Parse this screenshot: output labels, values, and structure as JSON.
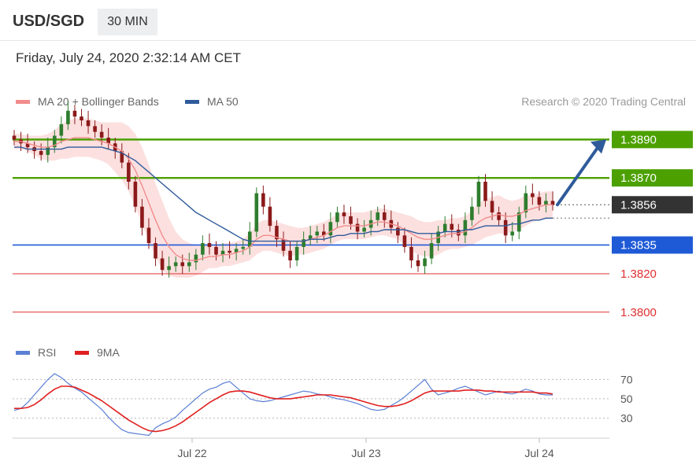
{
  "header": {
    "pair": "USD/SGD",
    "timeframe": "30 MIN"
  },
  "timestamp": "Friday, July 24, 2020 2:32:14 AM CET",
  "legend": {
    "items": [
      {
        "label": "MA 20 + Bollinger Bands",
        "color": "#f28c8c"
      },
      {
        "label": "MA 50",
        "color": "#2f5b9b"
      }
    ],
    "credit": "Research © 2020 Trading Central"
  },
  "rsi_legend": {
    "items": [
      {
        "label": "RSI",
        "color": "#5b7fd4"
      },
      {
        "label": "9MA",
        "color": "#e02020"
      }
    ]
  },
  "chart_data": [
    {
      "type": "line",
      "title": "USD/SGD",
      "x_ticks": [
        "Jul 22",
        "Jul 23",
        "Jul 24"
      ],
      "ylim": [
        1.3795,
        1.39
      ],
      "current_price": {
        "label": "1.3856",
        "value": 1.3856,
        "color": "#333333"
      },
      "levels": [
        {
          "label": "1.3890",
          "value": 1.389,
          "color": "#4ca000",
          "kind": "resistance",
          "tag": "box"
        },
        {
          "label": "1.3870",
          "value": 1.387,
          "color": "#4ca000",
          "kind": "resistance",
          "tag": "box"
        },
        {
          "label": "1.3835",
          "value": 1.3835,
          "color": "#1f5ad6",
          "kind": "pivot",
          "tag": "box"
        },
        {
          "label": "1.3820",
          "value": 1.382,
          "color": "#e03030",
          "kind": "support",
          "tag": "text"
        },
        {
          "label": "1.3800",
          "value": 1.38,
          "color": "#e03030",
          "kind": "support",
          "tag": "text"
        }
      ],
      "forecast_arrow": {
        "from": 1.3856,
        "to": 1.389,
        "color": "#2f5b9b"
      },
      "close_series": [
        1.389,
        1.3888,
        1.3886,
        1.3884,
        1.3882,
        1.3886,
        1.3892,
        1.3898,
        1.3905,
        1.3902,
        1.39,
        1.3897,
        1.3894,
        1.3891,
        1.3888,
        1.3884,
        1.3878,
        1.3868,
        1.3855,
        1.3844,
        1.3836,
        1.3828,
        1.3822,
        1.3824,
        1.3826,
        1.3824,
        1.3826,
        1.383,
        1.3836,
        1.3834,
        1.383,
        1.3832,
        1.3831,
        1.3833,
        1.3834,
        1.3842,
        1.3862,
        1.3855,
        1.3845,
        1.3838,
        1.3832,
        1.3827,
        1.3834,
        1.3838,
        1.384,
        1.3842,
        1.384,
        1.3847,
        1.3852,
        1.385,
        1.3846,
        1.3842,
        1.3844,
        1.3848,
        1.3852,
        1.3848,
        1.3844,
        1.384,
        1.3834,
        1.3827,
        1.3824,
        1.3828,
        1.3836,
        1.3842,
        1.3846,
        1.3843,
        1.384,
        1.3848,
        1.3855,
        1.3868,
        1.3858,
        1.3852,
        1.3848,
        1.384,
        1.3842,
        1.3852,
        1.3862,
        1.386,
        1.3856,
        1.3858,
        1.3856
      ],
      "ma20": [
        1.3889,
        1.3889,
        1.3888,
        1.3887,
        1.3886,
        1.3886,
        1.3887,
        1.3889,
        1.389,
        1.3891,
        1.3891,
        1.3891,
        1.389,
        1.3889,
        1.3888,
        1.3886,
        1.3884,
        1.388,
        1.3874,
        1.3866,
        1.3857,
        1.3848,
        1.384,
        1.3834,
        1.383,
        1.3828,
        1.3827,
        1.3827,
        1.3828,
        1.3829,
        1.3829,
        1.383,
        1.383,
        1.3831,
        1.3832,
        1.3834,
        1.3838,
        1.384,
        1.384,
        1.3839,
        1.3838,
        1.3837,
        1.3837,
        1.3837,
        1.3838,
        1.3839,
        1.384,
        1.3842,
        1.3844,
        1.3845,
        1.3845,
        1.3845,
        1.3845,
        1.3846,
        1.3847,
        1.3847,
        1.3846,
        1.3845,
        1.3843,
        1.3841,
        1.3839,
        1.3838,
        1.3838,
        1.3839,
        1.384,
        1.3841,
        1.3841,
        1.3842,
        1.3844,
        1.3847,
        1.3849,
        1.385,
        1.3851,
        1.385,
        1.385,
        1.3851,
        1.3853,
        1.3854,
        1.3855,
        1.3856,
        1.3856
      ],
      "ma50": [
        1.3886,
        1.3886,
        1.3885,
        1.3885,
        1.3885,
        1.3885,
        1.3885,
        1.3885,
        1.3886,
        1.3886,
        1.3886,
        1.3886,
        1.3886,
        1.3886,
        1.3885,
        1.3884,
        1.3883,
        1.3881,
        1.3879,
        1.3876,
        1.3873,
        1.387,
        1.3867,
        1.3864,
        1.3861,
        1.3858,
        1.3855,
        1.3852,
        1.385,
        1.3848,
        1.3846,
        1.3844,
        1.3842,
        1.384,
        1.3838,
        1.3837,
        1.3837,
        1.3837,
        1.3837,
        1.3837,
        1.3837,
        1.3837,
        1.3837,
        1.3837,
        1.3838,
        1.3838,
        1.3838,
        1.3839,
        1.384,
        1.384,
        1.3841,
        1.3841,
        1.3841,
        1.3842,
        1.3842,
        1.3843,
        1.3843,
        1.3843,
        1.3843,
        1.3842,
        1.3841,
        1.3841,
        1.3841,
        1.3841,
        1.3842,
        1.3842,
        1.3842,
        1.3843,
        1.3843,
        1.3844,
        1.3845,
        1.3845,
        1.3845,
        1.3845,
        1.3846,
        1.3846,
        1.3847,
        1.3848,
        1.3848,
        1.3849,
        1.3849
      ],
      "band_width": [
        4,
        4,
        4,
        5,
        6,
        7,
        8,
        9,
        10,
        10,
        10,
        10,
        10,
        10,
        11,
        13,
        15,
        17,
        19,
        20,
        20,
        19,
        18,
        15,
        12,
        10,
        9,
        8,
        7,
        6,
        6,
        6,
        6,
        6,
        6,
        7,
        8,
        8,
        8,
        8,
        8,
        8,
        7,
        7,
        7,
        7,
        7,
        7,
        7,
        7,
        7,
        7,
        7,
        7,
        7,
        7,
        7,
        7,
        8,
        9,
        9,
        9,
        9,
        9,
        8,
        8,
        8,
        8,
        9,
        10,
        10,
        10,
        10,
        9,
        8,
        8,
        8,
        7,
        7,
        7,
        7
      ]
    },
    {
      "type": "line",
      "title": "RSI",
      "ylim": [
        10,
        85
      ],
      "y_ticks": [
        "70",
        "50",
        "30"
      ],
      "reference_lines": [
        70,
        50,
        30
      ],
      "series": [
        {
          "name": "RSI",
          "color": "#5b7fd4",
          "values": [
            38,
            40,
            46,
            54,
            62,
            70,
            76,
            72,
            66,
            61,
            57,
            51,
            45,
            39,
            31,
            24,
            18,
            15,
            14,
            13,
            12,
            20,
            24,
            27,
            31,
            38,
            44,
            50,
            56,
            60,
            62,
            66,
            68,
            62,
            56,
            50,
            48,
            47,
            48,
            50,
            52,
            54,
            56,
            58,
            57,
            55,
            54,
            52,
            50,
            49,
            47,
            45,
            42,
            39,
            38,
            39,
            43,
            47,
            52,
            58,
            64,
            70,
            60,
            54,
            56,
            58,
            61,
            63,
            60,
            57,
            54,
            56,
            58,
            56,
            55,
            57,
            60,
            58,
            55,
            54,
            54
          ]
        },
        {
          "name": "9MA",
          "color": "#e02020",
          "values": [
            40,
            40,
            41,
            44,
            49,
            55,
            60,
            63,
            63,
            62,
            59,
            56,
            52,
            48,
            43,
            38,
            33,
            28,
            24,
            20,
            17,
            16,
            17,
            19,
            22,
            26,
            31,
            36,
            41,
            46,
            50,
            54,
            57,
            58,
            58,
            57,
            55,
            53,
            51,
            50,
            50,
            50,
            51,
            52,
            53,
            54,
            54,
            54,
            53,
            52,
            51,
            49,
            47,
            45,
            43,
            42,
            42,
            43,
            45,
            48,
            52,
            56,
            58,
            58,
            58,
            58,
            58,
            59,
            59,
            59,
            58,
            58,
            57,
            57,
            57,
            57,
            57,
            57,
            56,
            56,
            55
          ]
        }
      ]
    }
  ]
}
